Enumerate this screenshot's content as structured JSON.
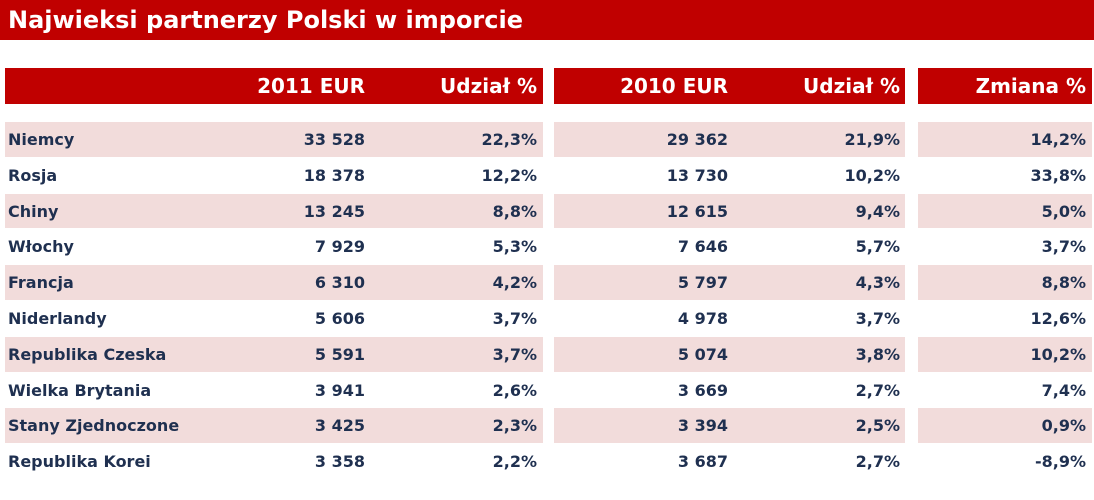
{
  "title": "Najwieksi partnerzy Polski w imporcie",
  "table": {
    "headers": [
      "2011 EUR",
      "Udział %",
      "2010 EUR",
      "Udział %",
      "Zmiana %"
    ],
    "rows": [
      [
        "Niemcy",
        "33 528",
        "22,3%",
        "29 362",
        "21,9%",
        "14,2%"
      ],
      [
        "Rosja",
        "18 378",
        "12,2%",
        "13 730",
        "10,2%",
        "33,8%"
      ],
      [
        "Chiny",
        "13 245",
        "8,8%",
        "12 615",
        "9,4%",
        "5,0%"
      ],
      [
        "Włochy",
        "7 929",
        "5,3%",
        "7 646",
        "5,7%",
        "3,7%"
      ],
      [
        "Francja",
        "6 310",
        "4,2%",
        "5 797",
        "4,3%",
        "8,8%"
      ],
      [
        "Niderlandy",
        "5 606",
        "3,7%",
        "4 978",
        "3,7%",
        "12,6%"
      ],
      [
        "Republika Czeska",
        "5 591",
        "3,7%",
        "5 074",
        "3,8%",
        "10,2%"
      ],
      [
        "Wielka Brytania",
        "3 941",
        "2,6%",
        "3 669",
        "2,7%",
        "7,4%"
      ],
      [
        "Stany Zjednoczone",
        "3 425",
        "2,3%",
        "3 394",
        "2,5%",
        "0,9%"
      ],
      [
        "Republika Korei",
        "3 358",
        "2,2%",
        "3 687",
        "2,7%",
        "-8,9%"
      ]
    ]
  }
}
